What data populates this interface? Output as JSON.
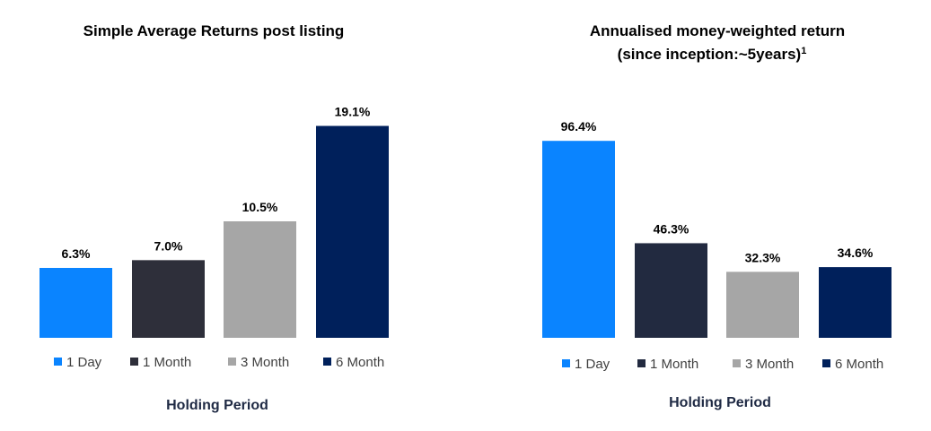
{
  "chart_data": [
    {
      "type": "bar",
      "title": "Simple Average Returns post listing",
      "subtitle": "",
      "xlabel": "Holding Period",
      "ylabel": "",
      "categories": [
        "1 Day",
        "1 Month",
        "3 Month",
        "6 Month"
      ],
      "values": [
        6.3,
        7.0,
        10.5,
        19.1
      ],
      "value_labels": [
        "6.3%",
        "7.0%",
        "10.5%",
        "19.1%"
      ],
      "colors": [
        "#0a84ff",
        "#2e2f3a",
        "#a6a6a6",
        "#00205b"
      ],
      "ylim": [
        0,
        21
      ],
      "grid": false,
      "legend_position": "bottom"
    },
    {
      "type": "bar",
      "title": "Annualised money-weighted return",
      "subtitle": "(since inception:~5years)",
      "subtitle_superscript": "1",
      "xlabel": "Holding Period",
      "ylabel": "",
      "categories": [
        "1 Day",
        "1 Month",
        "3 Month",
        "6 Month"
      ],
      "values": [
        96.4,
        46.3,
        32.3,
        34.6
      ],
      "value_labels": [
        "96.4%",
        "46.3%",
        "32.3%",
        "34.6%"
      ],
      "colors": [
        "#0a84ff",
        "#222a40",
        "#a6a6a6",
        "#00205b"
      ],
      "ylim": [
        0,
        100
      ],
      "grid": false,
      "legend_position": "bottom"
    }
  ]
}
